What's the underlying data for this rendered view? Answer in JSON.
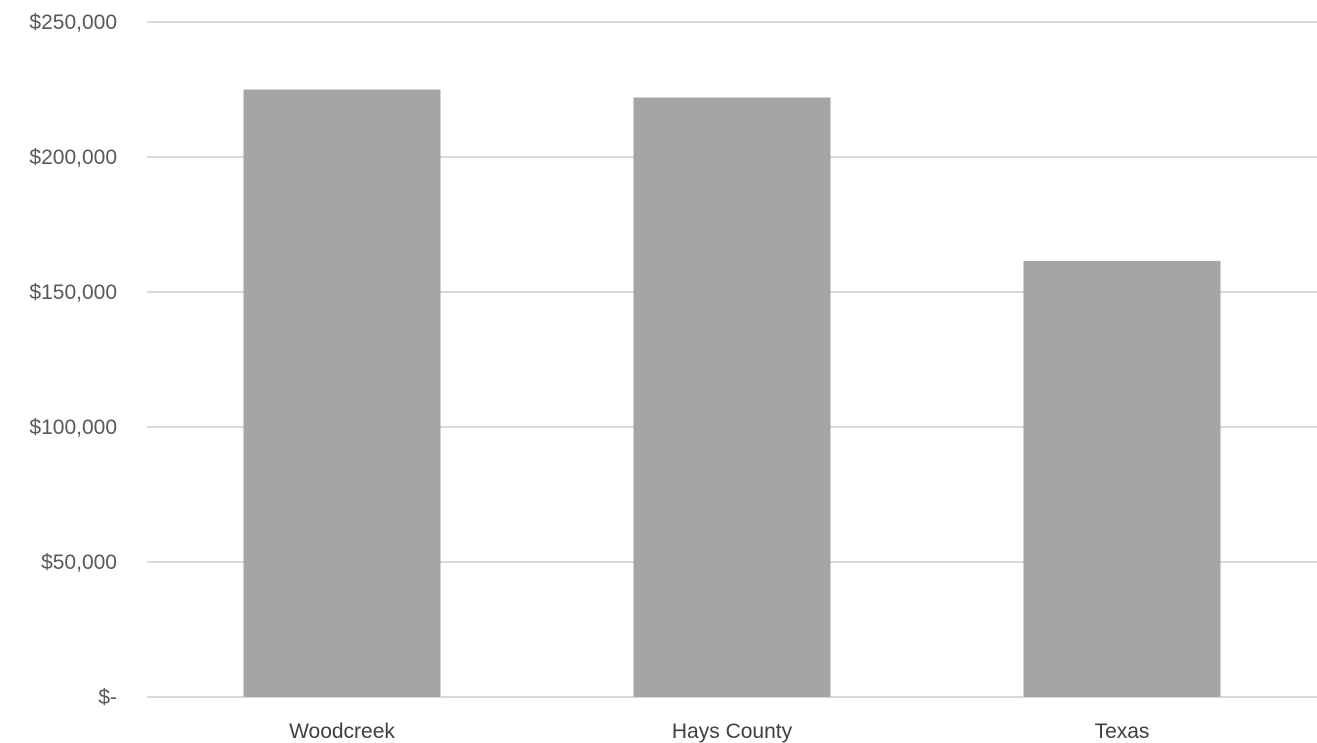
{
  "chart_data": {
    "type": "bar",
    "title": "",
    "xlabel": "",
    "ylabel": "",
    "categories": [
      "Woodcreek",
      "Hays County",
      "Texas"
    ],
    "values": [
      225000,
      222000,
      161500
    ],
    "ylim": [
      0,
      250000
    ],
    "yticks": [
      0,
      50000,
      100000,
      150000,
      200000,
      250000
    ],
    "ytick_labels": [
      "$-",
      "$50,000",
      "$100,000",
      "$150,000",
      "$200,000",
      "$250,000"
    ],
    "grid": true,
    "legend": "none",
    "bar_color": "#a5a5a5",
    "grid_color": "#d9d9d9"
  }
}
